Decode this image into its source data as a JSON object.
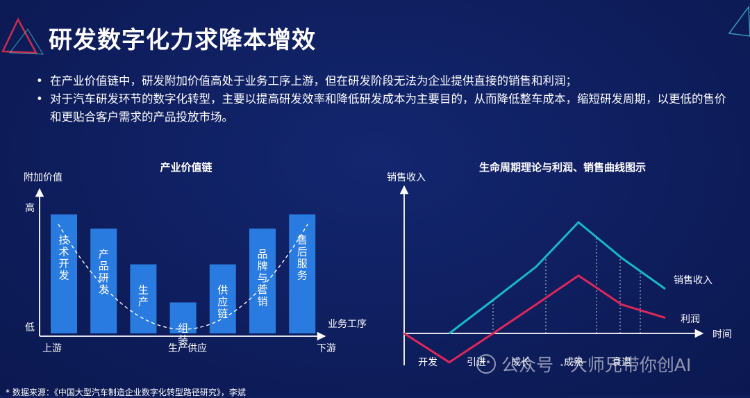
{
  "title": "研发数字化力求降本增效",
  "bullets": [
    "在产业价值链中，研发附加价值高处于业务工序上游，但在研发阶段无法为企业提供直接的销售和利润；",
    "对于汽车研发环节的数字化转型，主要以提高研发效率和降低研发成本为主要目的，从而降低整车成本，缩短研发周期，以更低的售价和更贴合客户需求的产品投放市场。"
  ],
  "colors": {
    "background": "#0e1d5c",
    "bar": "#2a7be0",
    "sales_line": "#1ab8c8",
    "profit_line": "#e0275a",
    "deco_red": "#e03050",
    "deco_cyan": "#4ad0e0"
  },
  "chart_data": [
    {
      "type": "bar",
      "title": "产业价值链",
      "ylabel": "附加价值",
      "xlabel": "业务工序",
      "y_tick_high": "高",
      "y_tick_low": "低",
      "x_start_label": "上游",
      "x_mid_label": "生产供应",
      "x_end_label": "下游",
      "categories": [
        "技术开发",
        "产品研发",
        "生产",
        "组装",
        "供应链",
        "品牌与营销",
        "售后服务"
      ],
      "values": [
        5,
        4.4,
        2.9,
        1.3,
        2.9,
        4.4,
        5
      ],
      "ylim": [
        0,
        5.6
      ],
      "trend": "smile-curve"
    },
    {
      "type": "line",
      "title": "生命周期理论与利润、销售曲线图示",
      "ylabel": "销售收入",
      "xlabel": "时间",
      "phases": [
        "开发",
        "引进",
        "成长",
        "成熟",
        "衰退"
      ],
      "x": [
        0,
        1,
        2,
        3,
        4,
        5,
        6
      ],
      "series": [
        {
          "name": "销售收入",
          "values": [
            null,
            0,
            1.5,
            3,
            5,
            3.4,
            2
          ]
        },
        {
          "name": "利润",
          "values": [
            0,
            -1.3,
            0,
            1.3,
            2.6,
            1.3,
            0.7
          ]
        }
      ],
      "ylim": [
        -1.6,
        6
      ]
    }
  ],
  "footnote": "* 数据来源：《中国大型汽车制造企业数字化转型路径研究》，李斌",
  "watermark": "公众号 · 大师兄带你创AI"
}
